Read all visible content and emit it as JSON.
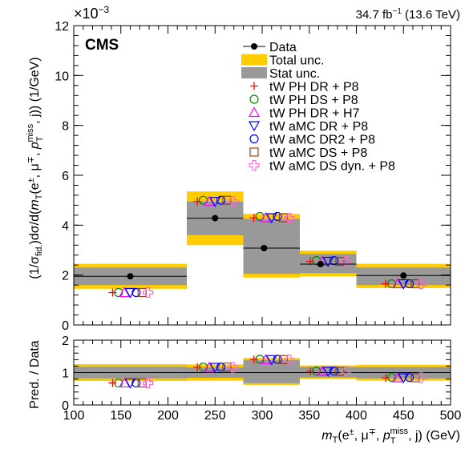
{
  "header": {
    "exponent_base": "×10",
    "exponent_power": "−3",
    "lumi_value": "34.7 fb",
    "lumi_power": "−1",
    "lumi_energy": " (13.6 TeV)",
    "experiment": "CMS"
  },
  "colors": {
    "total_unc": "#ffcc00",
    "stat_unc": "#999999",
    "data": "#000000"
  },
  "chart_data": [
    {
      "type": "bar",
      "panel": "main",
      "title": "",
      "xlabel": "",
      "ylabel": "(1/σfid.)dσ/d(mT(e±, μ∓, pTmiss, j)) (1/GeV)",
      "ylabel_parts": {
        "lead": "(1/σ",
        "fid_sub": "fid.",
        "mid": ")dσ/d(",
        "m": "m",
        "m_sub": "T",
        "args_a": "(e",
        "sup_pm": "±",
        "args_b": ", μ",
        "sup_mp": "∓",
        "args_c": ", ",
        "p": "p",
        "p_sub": "T",
        "p_sup": "miss",
        "args_d": ", j)) (1/GeV)"
      },
      "y_scale_exponent": -3,
      "xlim": [
        100,
        500
      ],
      "ylim": [
        0,
        12
      ],
      "x_ticks": [
        100,
        150,
        200,
        250,
        300,
        350,
        400,
        450,
        500
      ],
      "y_ticks": [
        0,
        2,
        4,
        6,
        8,
        10,
        12
      ],
      "bin_edges": [
        100,
        220,
        280,
        340,
        400,
        500
      ],
      "series": [
        {
          "name": "Data",
          "marker": "dot",
          "x": [
            160,
            250,
            302,
            362,
            450
          ],
          "values": [
            1.95,
            4.28,
            3.08,
            2.44,
            1.98
          ]
        },
        {
          "name": "tW PH DR + P8",
          "marker": "plus",
          "color": "#ff0000",
          "values": [
            1.3,
            4.95,
            4.3,
            2.55,
            1.65
          ]
        },
        {
          "name": "tW PH DS + P8",
          "marker": "circle",
          "color": "#008800",
          "values": [
            1.3,
            5.0,
            4.35,
            2.58,
            1.65
          ]
        },
        {
          "name": "tW PH DR + H7",
          "marker": "triangle-up",
          "color": "#ff00ff",
          "values": [
            1.3,
            4.95,
            4.3,
            2.55,
            1.65
          ]
        },
        {
          "name": "tW aMC DR + P8",
          "marker": "triangle-down",
          "color": "#0000ff",
          "values": [
            1.3,
            4.95,
            4.3,
            2.55,
            1.65
          ]
        },
        {
          "name": "tW aMC DR2 + P8",
          "marker": "circle",
          "color": "#0000ff",
          "values": [
            1.3,
            5.0,
            4.35,
            2.58,
            1.65
          ]
        },
        {
          "name": "tW aMC DS + P8",
          "marker": "square",
          "color": "#8b4513",
          "values": [
            1.3,
            5.0,
            4.3,
            2.55,
            1.65
          ]
        },
        {
          "name": "tW aMC DS dyn. + P8",
          "marker": "cross-open",
          "color": "#ff66cc",
          "values": [
            1.3,
            4.95,
            4.28,
            2.55,
            1.65
          ]
        }
      ],
      "bands": [
        {
          "name": "Total unc.",
          "color": "#ffcc00",
          "low": [
            1.45,
            3.2,
            1.9,
            1.95,
            1.48
          ],
          "high": [
            2.45,
            5.35,
            4.45,
            2.98,
            2.45
          ]
        },
        {
          "name": "Stat unc.",
          "color": "#999999",
          "low": [
            1.6,
            3.6,
            2.05,
            2.08,
            1.6
          ],
          "high": [
            2.3,
            4.95,
            4.25,
            2.85,
            2.3
          ]
        }
      ],
      "legend_placement": "top-right",
      "grid": false
    },
    {
      "type": "bar",
      "panel": "ratio",
      "title": "",
      "xlabel": "mT(e±, μ∓, pTmiss, j) (GeV)",
      "xlabel_parts": {
        "m": "m",
        "m_sub": "T",
        "args_a": "(e",
        "sup_pm": "±",
        "args_b": ", μ",
        "sup_mp": "∓",
        "args_c": ", ",
        "p": "p",
        "p_sub": "T",
        "p_sup": "miss",
        "args_d": ", j) (GeV)"
      },
      "ylabel": "Pred. / Data",
      "xlim": [
        100,
        500
      ],
      "ylim": [
        0,
        2
      ],
      "x_ticks": [
        100,
        150,
        200,
        250,
        300,
        350,
        400,
        450,
        500
      ],
      "y_ticks": [
        0,
        1,
        2
      ],
      "reference_line": 1,
      "bin_edges": [
        100,
        220,
        280,
        340,
        400,
        500
      ],
      "bands": [
        {
          "name": "Total unc.",
          "low": [
            0.74,
            0.75,
            0.62,
            0.8,
            0.75
          ],
          "high": [
            1.26,
            1.25,
            1.45,
            1.22,
            1.24
          ]
        },
        {
          "name": "Stat unc.",
          "low": [
            0.82,
            0.84,
            0.67,
            0.85,
            0.82
          ],
          "high": [
            1.18,
            1.16,
            1.38,
            1.17,
            1.17
          ]
        }
      ],
      "series": [
        {
          "name": "tW PH DR + P8",
          "marker": "plus",
          "values": [
            0.68,
            1.16,
            1.4,
            1.04,
            0.84
          ]
        },
        {
          "name": "tW PH DS + P8",
          "marker": "circle",
          "values": [
            0.68,
            1.17,
            1.41,
            1.05,
            0.85
          ]
        },
        {
          "name": "tW PH DR + H7",
          "marker": "triangle-up",
          "values": [
            0.68,
            1.16,
            1.4,
            1.04,
            0.84
          ]
        },
        {
          "name": "tW aMC DR + P8",
          "marker": "triangle-down",
          "values": [
            0.68,
            1.16,
            1.4,
            1.04,
            0.84
          ]
        },
        {
          "name": "tW aMC DR2 + P8",
          "marker": "circle",
          "values": [
            0.68,
            1.17,
            1.41,
            1.05,
            0.85
          ]
        },
        {
          "name": "tW aMC DS + P8",
          "marker": "square",
          "values": [
            0.68,
            1.17,
            1.4,
            1.04,
            0.84
          ]
        },
        {
          "name": "tW aMC DS dyn. + P8",
          "marker": "cross-open",
          "values": [
            0.68,
            1.16,
            1.39,
            1.04,
            0.84
          ]
        }
      ]
    }
  ]
}
